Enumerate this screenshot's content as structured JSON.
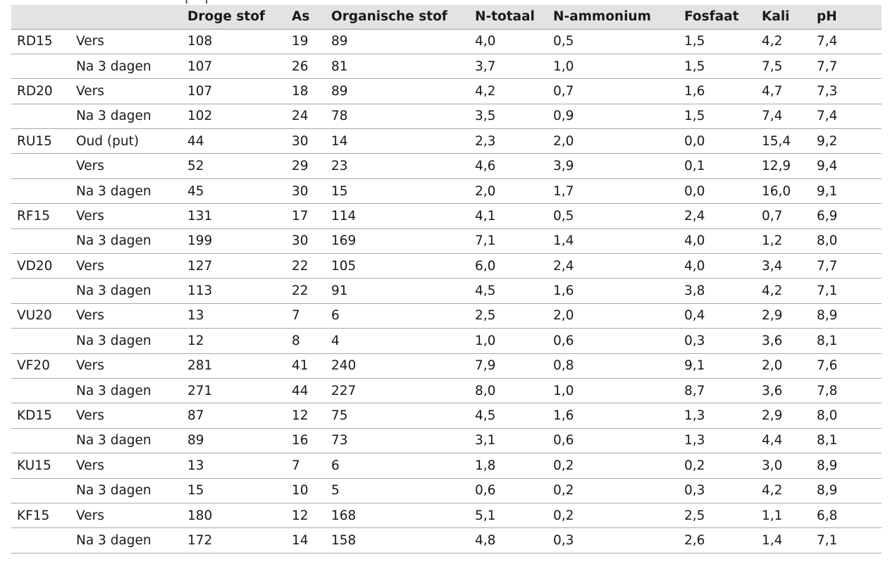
{
  "cut_text": "(…)",
  "table": {
    "headers": [
      "",
      "",
      "Droge stof",
      "As",
      "Organische stof",
      "N-totaal",
      "N-ammonium",
      "Fosfaat",
      "Kali",
      "pH"
    ],
    "rows": [
      [
        "RD15",
        "Vers",
        "108",
        "19",
        "89",
        "4,0",
        "0,5",
        "1,5",
        "4,2",
        "7,4"
      ],
      [
        "",
        "Na 3 dagen",
        "107",
        "26",
        "81",
        "3,7",
        "1,0",
        "1,5",
        "7,5",
        "7,7"
      ],
      [
        "RD20",
        "Vers",
        "107",
        "18",
        "89",
        "4,2",
        "0,7",
        "1,6",
        "4,7",
        "7,3"
      ],
      [
        "",
        "Na 3 dagen",
        "102",
        "24",
        "78",
        "3,5",
        "0,9",
        "1,5",
        "7,4",
        "7,4"
      ],
      [
        "RU15",
        "Oud (put)",
        "44",
        "30",
        "14",
        "2,3",
        "2,0",
        "0,0",
        "15,4",
        "9,2"
      ],
      [
        "",
        "Vers",
        "52",
        "29",
        "23",
        "4,6",
        "3,9",
        "0,1",
        "12,9",
        "9,4"
      ],
      [
        "",
        "Na 3 dagen",
        "45",
        "30",
        "15",
        "2,0",
        "1,7",
        "0,0",
        "16,0",
        "9,1"
      ],
      [
        "RF15",
        "Vers",
        "131",
        "17",
        "114",
        "4,1",
        "0,5",
        "2,4",
        "0,7",
        "6,9"
      ],
      [
        "",
        "Na 3 dagen",
        "199",
        "30",
        "169",
        "7,1",
        "1,4",
        "4,0",
        "1,2",
        "8,0"
      ],
      [
        "VD20",
        "Vers",
        "127",
        "22",
        "105",
        "6,0",
        "2,4",
        "4,0",
        "3,4",
        "7,7"
      ],
      [
        "",
        "Na 3 dagen",
        "113",
        "22",
        "91",
        "4,5",
        "1,6",
        "3,8",
        "4,2",
        "7,1"
      ],
      [
        "VU20",
        "Vers",
        "13",
        "7",
        "6",
        "2,5",
        "2,0",
        "0,4",
        "2,9",
        "8,9"
      ],
      [
        "",
        "Na 3 dagen",
        "12",
        "8",
        "4",
        "1,0",
        "0,6",
        "0,3",
        "3,6",
        "8,1"
      ],
      [
        "VF20",
        "Vers",
        "281",
        "41",
        "240",
        "7,9",
        "0,8",
        "9,1",
        "2,0",
        "7,6"
      ],
      [
        "",
        "Na 3 dagen",
        "271",
        "44",
        "227",
        "8,0",
        "1,0",
        "8,7",
        "3,6",
        "7,8"
      ],
      [
        "KD15",
        "Vers",
        "87",
        "12",
        "75",
        "4,5",
        "1,6",
        "1,3",
        "2,9",
        "8,0"
      ],
      [
        "",
        "Na 3 dagen",
        "89",
        "16",
        "73",
        "3,1",
        "0,6",
        "1,3",
        "4,4",
        "8,1"
      ],
      [
        "KU15",
        "Vers",
        "13",
        "7",
        "6",
        "1,8",
        "0,2",
        "0,2",
        "3,0",
        "8,9"
      ],
      [
        "",
        "Na 3 dagen",
        "15",
        "10",
        "5",
        "0,6",
        "0,2",
        "0,3",
        "4,2",
        "8,9"
      ],
      [
        "KF15",
        "Vers",
        "180",
        "12",
        "168",
        "5,1",
        "0,2",
        "2,5",
        "1,1",
        "6,8"
      ],
      [
        "",
        "Na 3 dagen",
        "172",
        "14",
        "158",
        "4,8",
        "0,3",
        "2,6",
        "1,4",
        "7,1"
      ]
    ]
  }
}
